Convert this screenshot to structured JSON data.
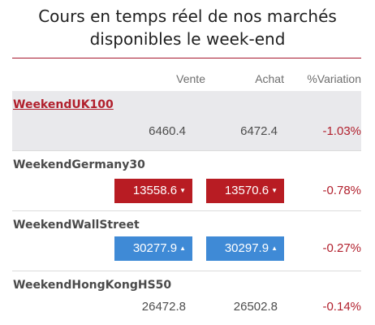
{
  "title_line1": "Cours en temps réel de nos marchés",
  "title_line2": "disponibles le week-end",
  "columns": {
    "sell": "Vente",
    "buy": "Achat",
    "variation": "%Variation"
  },
  "markets": [
    {
      "name": "WeekendUK100",
      "sell": "6460.4",
      "buy": "6472.4",
      "variation": "-1.03%",
      "trend": "neutral"
    },
    {
      "name": "WeekendGermany30",
      "sell": "13558.6",
      "buy": "13570.6",
      "variation": "-0.78%",
      "trend": "down",
      "arrow": "▼"
    },
    {
      "name": "WeekendWallStreet",
      "sell": "30277.9",
      "buy": "30297.9",
      "variation": "-0.27%",
      "trend": "up",
      "arrow": "▲"
    },
    {
      "name": "WeekendHongKongHS50",
      "sell": "26472.8",
      "buy": "26502.8",
      "variation": "-0.14%",
      "trend": "neutral"
    }
  ],
  "colors": {
    "accent": "#a6192e",
    "down": "#b81c23",
    "up": "#3f8ad6",
    "negative_text": "#b11f2c",
    "highlight_row": "#e9e9ec"
  }
}
